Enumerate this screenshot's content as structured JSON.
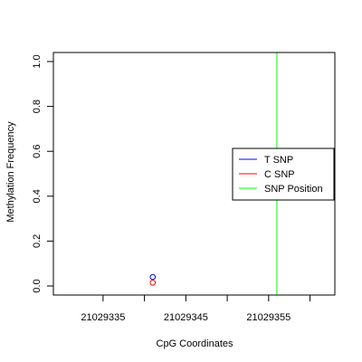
{
  "chart_data": {
    "type": "scatter",
    "title": "",
    "xlabel": "CpG Coordinates",
    "ylabel": "Methylation Frequency",
    "xlim": [
      21029329,
      21029363
    ],
    "ylim": [
      0,
      1
    ],
    "x_ticks": [
      21029335,
      21029340,
      21029345,
      21029350,
      21029355,
      21029360
    ],
    "x_tick_labels": [
      "21029335",
      "",
      "21029345",
      "",
      "21029355",
      ""
    ],
    "y_ticks": [
      0.0,
      0.2,
      0.4,
      0.6,
      0.8,
      1.0
    ],
    "y_tick_labels": [
      "0.0",
      "0.2",
      "0.4",
      "0.6",
      "0.8",
      "1.0"
    ],
    "series": [
      {
        "name": "T SNP",
        "color": "#0000ff",
        "points": [
          {
            "x": 21029341,
            "y": 0.04
          }
        ]
      },
      {
        "name": "C SNP",
        "color": "#ff0000",
        "points": [
          {
            "x": 21029341,
            "y": 0.015
          }
        ]
      }
    ],
    "vlines": [
      {
        "name": "SNP Position",
        "color": "#00ff00",
        "x": 21029356
      }
    ],
    "legend": {
      "position": "right",
      "entries": [
        {
          "label": "T SNP",
          "color": "#0000ff"
        },
        {
          "label": "C SNP",
          "color": "#ff0000"
        },
        {
          "label": "SNP Position",
          "color": "#00ff00"
        }
      ]
    },
    "grid": false
  }
}
